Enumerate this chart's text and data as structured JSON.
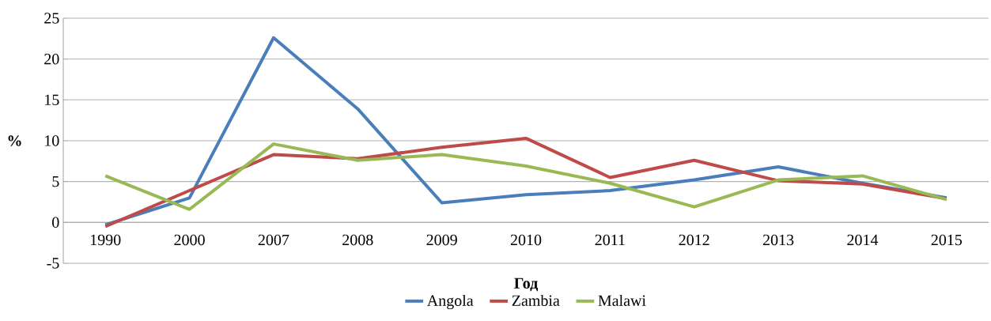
{
  "chart_data": {
    "type": "line",
    "xlabel": "Год",
    "ylabel": "%",
    "categories": [
      "1990",
      "2000",
      "2007",
      "2008",
      "2009",
      "2010",
      "2011",
      "2012",
      "2013",
      "2014",
      "2015"
    ],
    "series": [
      {
        "name": "Angola",
        "color": "#4a7ebb",
        "values": [
          -0.3,
          3.0,
          22.6,
          13.9,
          2.4,
          3.4,
          3.9,
          5.2,
          6.8,
          4.8,
          3.0
        ]
      },
      {
        "name": "Zambia",
        "color": "#be4b48",
        "values": [
          -0.5,
          3.9,
          8.3,
          7.8,
          9.2,
          10.3,
          5.5,
          7.6,
          5.1,
          4.7,
          2.9
        ]
      },
      {
        "name": "Malawi",
        "color": "#98b954",
        "values": [
          5.7,
          1.6,
          9.6,
          7.6,
          8.3,
          6.9,
          4.8,
          1.9,
          5.2,
          5.7,
          2.8
        ]
      }
    ],
    "ylim": [
      -5,
      25
    ],
    "yticks": [
      -5,
      0,
      5,
      10,
      15,
      20,
      25
    ],
    "grid": "y",
    "legend": "bottom",
    "marker": "none",
    "line_style": "solid"
  }
}
